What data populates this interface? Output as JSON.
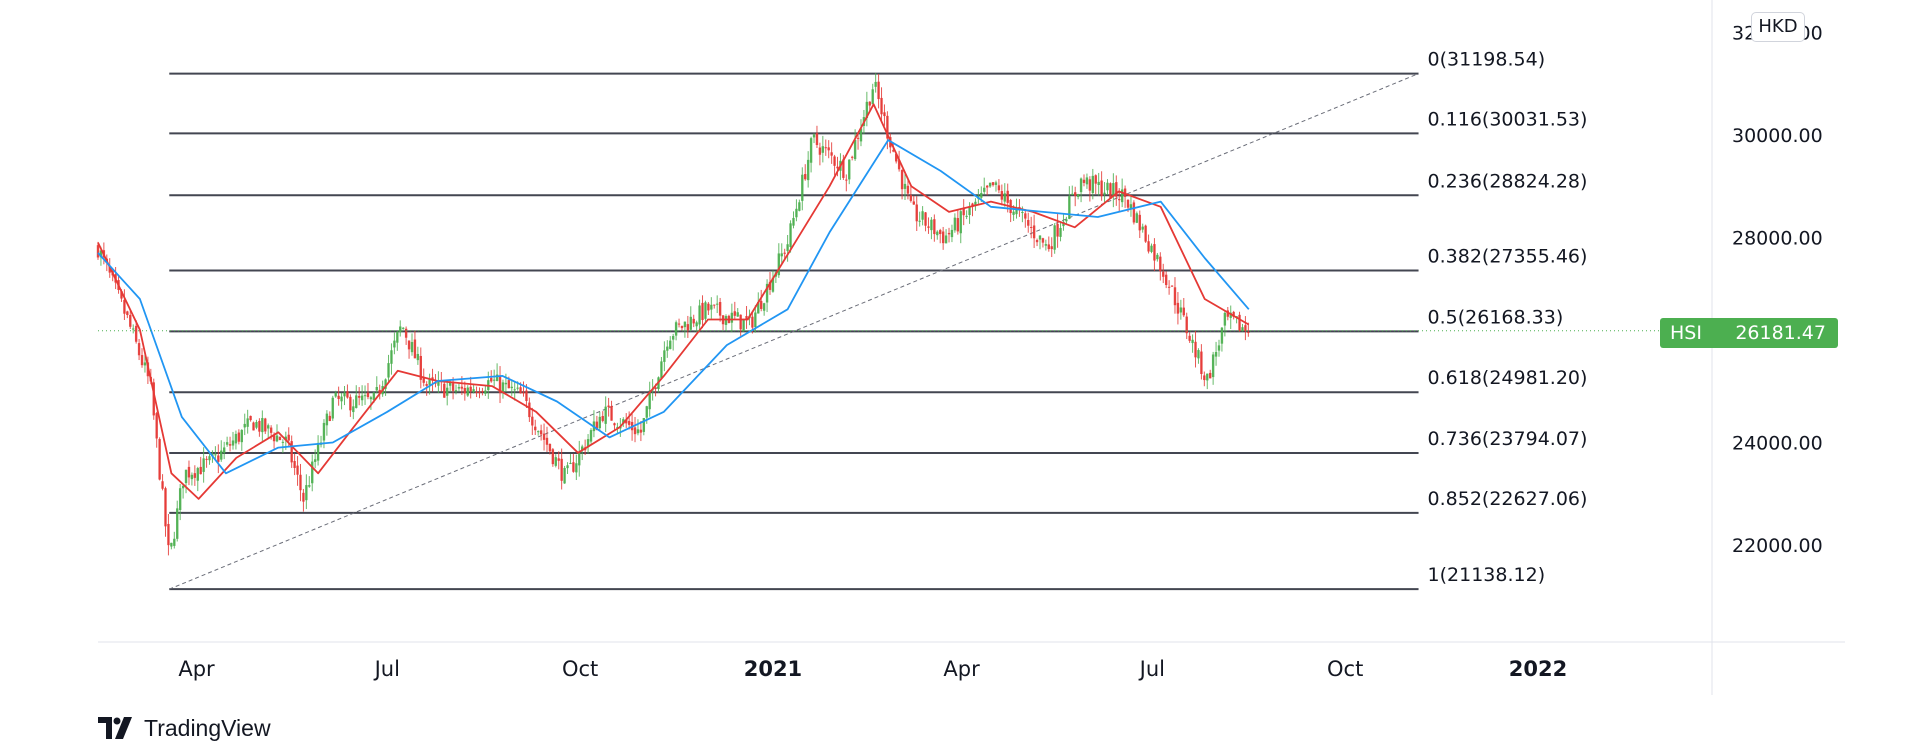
{
  "app": {
    "brand_name": "TradingView",
    "currency": "HKD"
  },
  "price_tag": {
    "symbol": "HSI",
    "value": "26181.47",
    "color": "#4caf50"
  },
  "chart_data": {
    "type": "line",
    "symbol": "HSI",
    "y_axis": {
      "ticks": [
        {
          "value": 22000,
          "label": "22000.00"
        },
        {
          "value": 24000,
          "label": "24000.00"
        },
        {
          "value": 26000,
          "label": ""
        },
        {
          "value": 28000,
          "label": "28000.00"
        },
        {
          "value": 30000,
          "label": "30000.00"
        },
        {
          "value": 32000,
          "label": "32000.00"
        }
      ],
      "ylim": [
        20000,
        32500
      ]
    },
    "x_axis": {
      "ticks": [
        {
          "date": "2020-04-01",
          "label": "Apr",
          "bold": false
        },
        {
          "date": "2020-07-01",
          "label": "Jul",
          "bold": false
        },
        {
          "date": "2020-10-01",
          "label": "Oct",
          "bold": false
        },
        {
          "date": "2021-01-01",
          "label": "2021",
          "bold": true
        },
        {
          "date": "2021-04-01",
          "label": "Apr",
          "bold": false
        },
        {
          "date": "2021-07-01",
          "label": "Jul",
          "bold": false
        },
        {
          "date": "2021-10-01",
          "label": "Oct",
          "bold": false
        },
        {
          "date": "2022-01-01",
          "label": "2022",
          "bold": true
        }
      ],
      "xlim": [
        "2020-02-14",
        "2022-03-25"
      ]
    },
    "fibonacci": {
      "start_date": "2020-03-19",
      "end_date": "2021-11-05",
      "levels": [
        {
          "ratio": "0",
          "price": 31198.54,
          "label": "0(31198.54)"
        },
        {
          "ratio": "0.116",
          "price": 30031.53,
          "label": "0.116(30031.53)"
        },
        {
          "ratio": "0.236",
          "price": 28824.28,
          "label": "0.236(28824.28)"
        },
        {
          "ratio": "0.382",
          "price": 27355.46,
          "label": "0.382(27355.46)"
        },
        {
          "ratio": "0.5",
          "price": 26168.33,
          "label": "0.5(26168.33)"
        },
        {
          "ratio": "0.618",
          "price": 24981.2,
          "label": "0.618(24981.20)"
        },
        {
          "ratio": "0.736",
          "price": 23794.07,
          "label": "0.736(23794.07)"
        },
        {
          "ratio": "0.852",
          "price": 22627.06,
          "label": "0.852(22627.06)"
        },
        {
          "ratio": "1",
          "price": 21138.12,
          "label": "1(21138.12)"
        }
      ],
      "trendline": {
        "from": [
          "2020-03-19",
          21138.12
        ],
        "to": [
          "2021-11-05",
          31198.54
        ]
      }
    },
    "last_price": 26181.47,
    "price_path": [
      [
        "2020-02-14",
        27800
      ],
      [
        "2020-02-28",
        26400
      ],
      [
        "2020-03-10",
        25100
      ],
      [
        "2020-03-19",
        21700
      ],
      [
        "2020-03-26",
        23400
      ],
      [
        "2020-04-08",
        23600
      ],
      [
        "2020-04-28",
        24400
      ],
      [
        "2020-05-14",
        24000
      ],
      [
        "2020-05-22",
        22900
      ],
      [
        "2020-06-05",
        24800
      ],
      [
        "2020-06-25",
        24800
      ],
      [
        "2020-07-08",
        26300
      ],
      [
        "2020-07-20",
        25100
      ],
      [
        "2020-08-05",
        25000
      ],
      [
        "2020-08-20",
        25200
      ],
      [
        "2020-09-03",
        24900
      ],
      [
        "2020-09-24",
        23300
      ],
      [
        "2020-10-12",
        24600
      ],
      [
        "2020-10-30",
        24200
      ],
      [
        "2020-11-12",
        26100
      ],
      [
        "2020-12-01",
        26600
      ],
      [
        "2020-12-21",
        26300
      ],
      [
        "2021-01-08",
        27900
      ],
      [
        "2021-01-20",
        29900
      ],
      [
        "2021-02-05",
        29300
      ],
      [
        "2021-02-18",
        31000
      ],
      [
        "2021-03-08",
        28500
      ],
      [
        "2021-03-24",
        28000
      ],
      [
        "2021-04-16",
        29000
      ],
      [
        "2021-05-12",
        27800
      ],
      [
        "2021-05-28",
        29100
      ],
      [
        "2021-06-18",
        28800
      ],
      [
        "2021-07-08",
        27200
      ],
      [
        "2021-07-27",
        25200
      ],
      [
        "2021-08-05",
        26400
      ],
      [
        "2021-08-16",
        26181.47
      ]
    ],
    "series": [
      {
        "type": "moving-average",
        "color": "#e53935",
        "points": [
          [
            "2020-02-14",
            27900
          ],
          [
            "2020-03-05",
            26200
          ],
          [
            "2020-03-20",
            23400
          ],
          [
            "2020-04-02",
            22900
          ],
          [
            "2020-04-20",
            23700
          ],
          [
            "2020-05-10",
            24200
          ],
          [
            "2020-05-29",
            23400
          ],
          [
            "2020-06-15",
            24300
          ],
          [
            "2020-07-06",
            25400
          ],
          [
            "2020-07-25",
            25200
          ],
          [
            "2020-08-20",
            25100
          ],
          [
            "2020-09-10",
            24600
          ],
          [
            "2020-09-30",
            23800
          ],
          [
            "2020-10-20",
            24300
          ],
          [
            "2020-11-10",
            25300
          ],
          [
            "2020-12-01",
            26400
          ],
          [
            "2020-12-20",
            26400
          ],
          [
            "2021-01-10",
            27800
          ],
          [
            "2021-01-28",
            29000
          ],
          [
            "2021-02-18",
            30600
          ],
          [
            "2021-03-08",
            29000
          ],
          [
            "2021-03-26",
            28500
          ],
          [
            "2021-04-15",
            28700
          ],
          [
            "2021-05-05",
            28500
          ],
          [
            "2021-05-25",
            28200
          ],
          [
            "2021-06-15",
            28900
          ],
          [
            "2021-07-05",
            28600
          ],
          [
            "2021-07-26",
            26800
          ],
          [
            "2021-08-16",
            26300
          ]
        ]
      },
      {
        "type": "moving-average",
        "color": "#2196f3",
        "points": [
          [
            "2020-02-14",
            27700
          ],
          [
            "2020-03-05",
            26800
          ],
          [
            "2020-03-25",
            24500
          ],
          [
            "2020-04-15",
            23400
          ],
          [
            "2020-05-10",
            23900
          ],
          [
            "2020-06-05",
            24000
          ],
          [
            "2020-07-01",
            24600
          ],
          [
            "2020-07-25",
            25200
          ],
          [
            "2020-08-25",
            25300
          ],
          [
            "2020-09-20",
            24800
          ],
          [
            "2020-10-15",
            24100
          ],
          [
            "2020-11-10",
            24600
          ],
          [
            "2020-12-10",
            25900
          ],
          [
            "2021-01-08",
            26600
          ],
          [
            "2021-01-28",
            28100
          ],
          [
            "2021-02-25",
            29900
          ],
          [
            "2021-03-22",
            29300
          ],
          [
            "2021-04-15",
            28600
          ],
          [
            "2021-05-10",
            28500
          ],
          [
            "2021-06-05",
            28400
          ],
          [
            "2021-07-05",
            28700
          ],
          [
            "2021-07-26",
            27600
          ],
          [
            "2021-08-16",
            26600
          ]
        ]
      }
    ]
  }
}
